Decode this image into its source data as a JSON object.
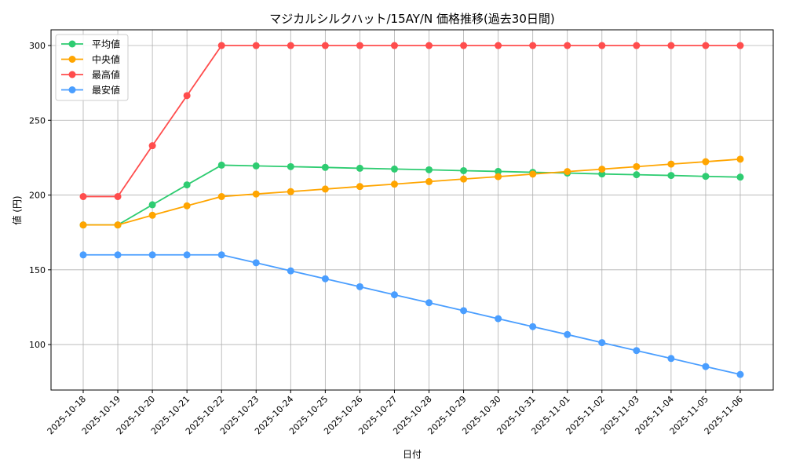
{
  "chart_data": {
    "type": "line",
    "title": "マジカルシルクハット/15AY/N 価格推移(過去30日間)",
    "xlabel": "日付",
    "ylabel": "値 (円)",
    "ylim": [
      69.6,
      310.5
    ],
    "yticks": [
      100,
      150,
      200,
      250,
      300
    ],
    "grid": true,
    "legend": "top-left",
    "x": [
      "2025-10-18",
      "2025-10-19",
      "2025-10-20",
      "2025-10-21",
      "2025-10-22",
      "2025-10-23",
      "2025-10-24",
      "2025-10-25",
      "2025-10-26",
      "2025-10-27",
      "2025-10-28",
      "2025-10-29",
      "2025-10-30",
      "2025-10-31",
      "2025-11-01",
      "2025-11-02",
      "2025-11-03",
      "2025-11-04",
      "2025-11-05",
      "2025-11-06"
    ],
    "series": [
      {
        "name": "平均値",
        "color": "#2ecc71",
        "values": [
          180,
          180,
          193.5,
          206.8,
          220,
          219.5,
          219,
          218.5,
          217.9,
          217.4,
          216.9,
          216.3,
          215.8,
          215.2,
          214.7,
          214.1,
          213.6,
          213.1,
          212.5,
          212
        ]
      },
      {
        "name": "中央値",
        "color": "#ffa500",
        "values": [
          180,
          180,
          186.5,
          192.8,
          199,
          200.7,
          202.3,
          204,
          205.7,
          207.3,
          209,
          210.7,
          212.3,
          214,
          215.7,
          217.3,
          219,
          220.7,
          222.3,
          224
        ]
      },
      {
        "name": "最高値",
        "color": "#ff4d4d",
        "values": [
          199,
          199,
          233,
          266.5,
          300,
          300,
          300,
          300,
          300,
          300,
          300,
          300,
          300,
          300,
          300,
          300,
          300,
          300,
          300,
          300
        ]
      },
      {
        "name": "最安値",
        "color": "#4a9eff",
        "values": [
          160,
          160,
          160,
          160,
          160,
          154.7,
          149.3,
          144,
          138.7,
          133.3,
          128,
          122.7,
          117.3,
          112,
          106.7,
          101.3,
          96,
          90.7,
          85.3,
          80
        ]
      }
    ]
  }
}
